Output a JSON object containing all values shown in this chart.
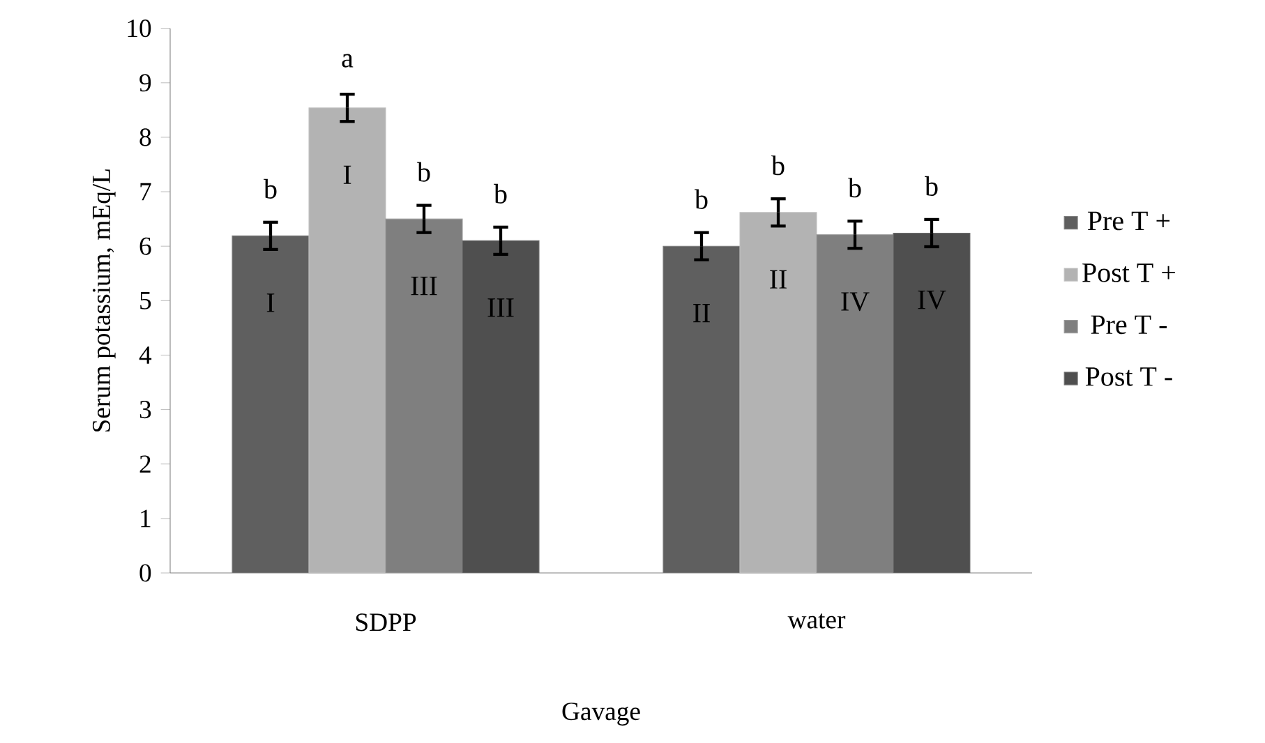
{
  "chart_data": {
    "type": "bar",
    "xlabel": "Gavage",
    "ylabel": "Serum potassium, mEq/L",
    "categories": [
      "SDPP",
      "water"
    ],
    "series": [
      {
        "name": "Pre T +",
        "color": "#5f5f5f",
        "values": [
          6.19,
          6.0
        ],
        "errors": [
          0.25,
          0.25
        ]
      },
      {
        "name": "Post T +",
        "color": "#b3b3b3",
        "values": [
          8.54,
          6.62
        ],
        "errors": [
          0.25,
          0.25
        ]
      },
      {
        "name": "Pre T -",
        "color": "#7f7f7f",
        "values": [
          6.5,
          6.21
        ],
        "errors": [
          0.25,
          0.25
        ]
      },
      {
        "name": "Post T -",
        "color": "#4f4f4f",
        "values": [
          6.1,
          6.24
        ],
        "errors": [
          0.25,
          0.25
        ]
      }
    ],
    "ylim": [
      0,
      10
    ],
    "yticks": [
      0,
      1,
      2,
      3,
      4,
      5,
      6,
      7,
      8,
      9,
      10
    ],
    "grid": false,
    "legend": "right",
    "annotations": [
      "b",
      "I",
      "a",
      "I",
      "b",
      "III",
      "b",
      "III",
      "b",
      "II",
      "b",
      "II",
      "b",
      "IV",
      "b",
      "IV"
    ]
  }
}
